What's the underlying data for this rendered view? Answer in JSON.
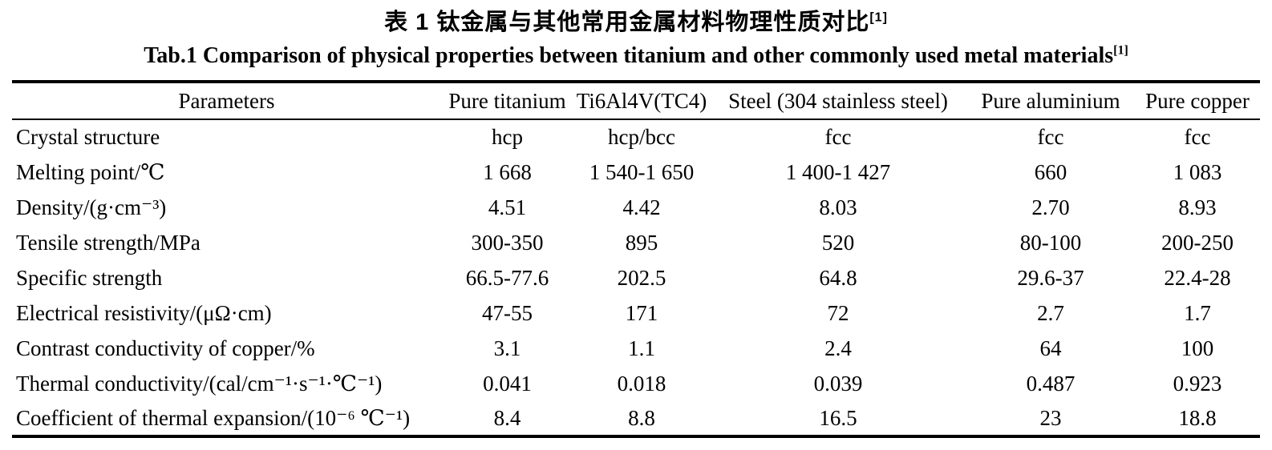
{
  "titles": {
    "zh": "表 1  钛金属与其他常用金属材料物理性质对比",
    "zh_ref": "[1]",
    "en": "Tab.1 Comparison of physical properties between titanium and other commonly used metal materials",
    "en_ref": "[1]"
  },
  "table": {
    "columns": [
      "Parameters",
      "Pure titanium",
      "Ti6Al4V(TC4)",
      "Steel (304 stainless steel)",
      "Pure aluminium",
      "Pure copper"
    ],
    "rows": [
      {
        "label": "Crystal structure",
        "values": [
          "hcp",
          "hcp/bcc",
          "fcc",
          "fcc",
          "fcc"
        ]
      },
      {
        "label": "Melting point/℃",
        "values": [
          "1 668",
          "1 540-1 650",
          "1 400-1 427",
          "660",
          "1 083"
        ]
      },
      {
        "label": "Density/(g·cm⁻³)",
        "values": [
          "4.51",
          "4.42",
          "8.03",
          "2.70",
          "8.93"
        ]
      },
      {
        "label": "Tensile strength/MPa",
        "values": [
          "300-350",
          "895",
          "520",
          "80-100",
          "200-250"
        ]
      },
      {
        "label": "Specific strength",
        "values": [
          "66.5-77.6",
          "202.5",
          "64.8",
          "29.6-37",
          "22.4-28"
        ]
      },
      {
        "label": "Electrical resistivity/(μΩ·cm)",
        "values": [
          "47-55",
          "171",
          "72",
          "2.7",
          "1.7"
        ]
      },
      {
        "label": "Contrast conductivity of copper/%",
        "values": [
          "3.1",
          "1.1",
          "2.4",
          "64",
          "100"
        ]
      },
      {
        "label": "Thermal conductivity/(cal/cm⁻¹·s⁻¹·℃⁻¹)",
        "values": [
          "0.041",
          "0.018",
          "0.039",
          "0.487",
          "0.923"
        ]
      },
      {
        "label": "Coefficient of thermal expansion/(10⁻⁶ ℃⁻¹)",
        "values": [
          "8.4",
          "8.8",
          "16.5",
          "23",
          "18.8"
        ]
      }
    ]
  },
  "colors": {
    "text": "#000000",
    "background": "#ffffff",
    "rule": "#000000"
  }
}
